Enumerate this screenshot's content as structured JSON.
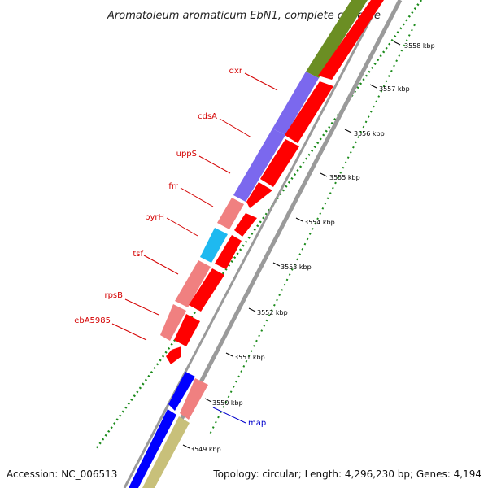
{
  "title": "Aromatoleum aromaticum EbN1, complete genome",
  "footer": {
    "accession": "Accession: NC_006513",
    "summary": "Topology: circular; Length: 4,296,230 bp; Genes: 4,194"
  },
  "colors": {
    "cds_red": "#ff0000",
    "olive": "#6b8e23",
    "purple": "#7b68ee",
    "pink": "#f08080",
    "cyan": "#1eb9f0",
    "blue": "#0000ff",
    "khaki": "#c8c07a",
    "backbone": "#9a9a9a",
    "gc_skew_dots": "#1a8a1a",
    "gene_label_red": "#d40000",
    "gene_label_blue": "#0000cc"
  },
  "gene_labels": [
    {
      "text": "dxr",
      "color": "red"
    },
    {
      "text": "cdsA",
      "color": "red"
    },
    {
      "text": "uppS",
      "color": "red"
    },
    {
      "text": "frr",
      "color": "red"
    },
    {
      "text": "pyrH",
      "color": "red"
    },
    {
      "text": "tsf",
      "color": "red"
    },
    {
      "text": "rpsB",
      "color": "red"
    },
    {
      "text": "ebA5985",
      "color": "red"
    },
    {
      "text": "map",
      "color": "blue"
    }
  ],
  "ticks": [
    "3558 kbp",
    "3557 kbp",
    "3556 kbp",
    "3555 kbp",
    "3554 kbp",
    "3553 kbp",
    "3552 kbp",
    "3551 kbp",
    "3550 kbp",
    "3549 kbp"
  ]
}
